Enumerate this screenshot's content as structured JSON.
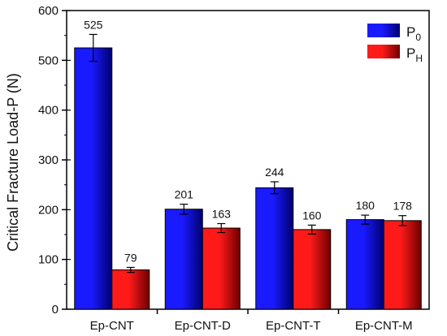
{
  "chart_data": {
    "type": "bar",
    "title": "",
    "xlabel": "",
    "ylabel": "Critical Fracture Load-P (N)",
    "categories": [
      "Ep-CNT",
      "Ep-CNT-D",
      "Ep-CNT-T",
      "Ep-CNT-M"
    ],
    "ylim": [
      0,
      600
    ],
    "yticks": [
      0,
      100,
      200,
      300,
      400,
      500,
      600
    ],
    "series": [
      {
        "name": "P0",
        "legend_main": "P",
        "legend_sub": "0",
        "values": [
          525,
          201,
          244,
          180
        ],
        "errors": [
          27,
          10,
          12,
          9
        ],
        "data_labels": [
          "525",
          "201",
          "244",
          "180"
        ],
        "color": "#1a1aff",
        "dark_color": "#00006e"
      },
      {
        "name": "PH",
        "legend_main": "P",
        "legend_sub": "H",
        "values": [
          79,
          163,
          160,
          178
        ],
        "errors": [
          5,
          9,
          9,
          10
        ],
        "data_labels": [
          "79",
          "163",
          "160",
          "178"
        ],
        "color": "#ff1a1a",
        "dark_color": "#6e0000"
      }
    ],
    "legend_position": "top-right",
    "grid": false
  }
}
